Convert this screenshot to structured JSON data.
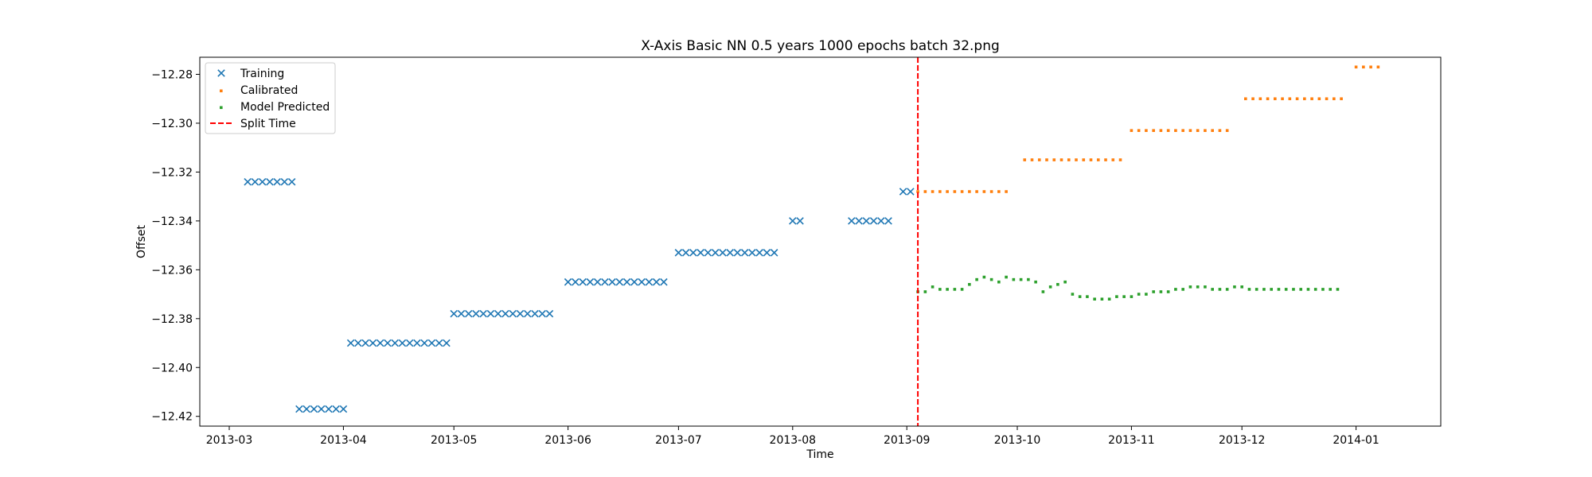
{
  "chart_data": {
    "type": "scatter",
    "title": "X-Axis Basic NN 0.5 years 1000 epochs batch 32.png",
    "xlabel": "Time",
    "ylabel": "Offset",
    "x_axis_kind": "date",
    "xlim": [
      "2013-02-21",
      "2014-01-24"
    ],
    "ylim": [
      -12.424,
      -12.273
    ],
    "x_ticks": [
      "2013-03-01",
      "2013-04-01",
      "2013-05-01",
      "2013-06-01",
      "2013-07-01",
      "2013-08-01",
      "2013-09-01",
      "2013-10-01",
      "2013-11-01",
      "2013-12-01",
      "2014-01-01"
    ],
    "x_tick_labels": [
      "2013-03",
      "2013-04",
      "2013-05",
      "2013-06",
      "2013-07",
      "2013-08",
      "2013-09",
      "2013-10",
      "2013-11",
      "2013-12",
      "2014-01"
    ],
    "y_ticks": [
      -12.42,
      -12.4,
      -12.38,
      -12.36,
      -12.34,
      -12.32,
      -12.3,
      -12.28
    ],
    "y_tick_labels": [
      "−12.42",
      "−12.40",
      "−12.38",
      "−12.36",
      "−12.34",
      "−12.32",
      "−12.30",
      "−12.28"
    ],
    "grid": false,
    "legend_position": "upper-left",
    "split_time": "2013-09-04",
    "series": [
      {
        "name": "Training",
        "marker": "x",
        "color": "#1f77b4",
        "runs": [
          {
            "start": "2013-03-06",
            "count": 7,
            "y": -12.324
          },
          {
            "start": "2013-03-20",
            "count": 7,
            "y": -12.417
          },
          {
            "start": "2013-04-03",
            "count": 14,
            "y": -12.39
          },
          {
            "start": "2013-05-01",
            "count": 14,
            "y": -12.378
          },
          {
            "start": "2013-06-01",
            "count": 14,
            "y": -12.365
          },
          {
            "start": "2013-07-01",
            "count": 14,
            "y": -12.353
          },
          {
            "start": "2013-08-01",
            "count": 2,
            "y": -12.34
          },
          {
            "start": "2013-08-17",
            "count": 6,
            "y": -12.34
          },
          {
            "start": "2013-08-31",
            "count": 2,
            "y": -12.328
          }
        ]
      },
      {
        "name": "Calibrated",
        "marker": "square",
        "color": "#ff7f0e",
        "runs": [
          {
            "start": "2013-09-04",
            "count": 13,
            "y": -12.328
          },
          {
            "start": "2013-10-03",
            "count": 14,
            "y": -12.315
          },
          {
            "start": "2013-11-01",
            "count": 14,
            "y": -12.303
          },
          {
            "start": "2013-12-02",
            "count": 14,
            "y": -12.29
          },
          {
            "start": "2014-01-01",
            "count": 4,
            "y": -12.277
          }
        ]
      },
      {
        "name": "Model Predicted",
        "marker": "square",
        "color": "#2ca02c",
        "start": "2013-09-04",
        "y": [
          -12.369,
          -12.369,
          -12.367,
          -12.368,
          -12.368,
          -12.368,
          -12.368,
          -12.366,
          -12.364,
          -12.363,
          -12.364,
          -12.365,
          -12.363,
          -12.364,
          -12.364,
          -12.364,
          -12.365,
          -12.369,
          -12.367,
          -12.366,
          -12.365,
          -12.37,
          -12.371,
          -12.371,
          -12.372,
          -12.372,
          -12.372,
          -12.371,
          -12.371,
          -12.371,
          -12.37,
          -12.37,
          -12.369,
          -12.369,
          -12.369,
          -12.368,
          -12.368,
          -12.367,
          -12.367,
          -12.367,
          -12.368,
          -12.368,
          -12.368,
          -12.367,
          -12.367,
          -12.368,
          -12.368,
          -12.368,
          -12.368,
          -12.368,
          -12.368,
          -12.368,
          -12.368,
          -12.368,
          -12.368,
          -12.368,
          -12.368,
          -12.368
        ]
      }
    ],
    "legend": [
      {
        "label": "Training",
        "marker": "x",
        "color": "#1f77b4"
      },
      {
        "label": "Calibrated",
        "marker": "square",
        "color": "#ff7f0e"
      },
      {
        "label": "Model Predicted",
        "marker": "square",
        "color": "#2ca02c"
      },
      {
        "label": "Split Time",
        "marker": "dashed-line",
        "color": "#ff0000"
      }
    ]
  }
}
